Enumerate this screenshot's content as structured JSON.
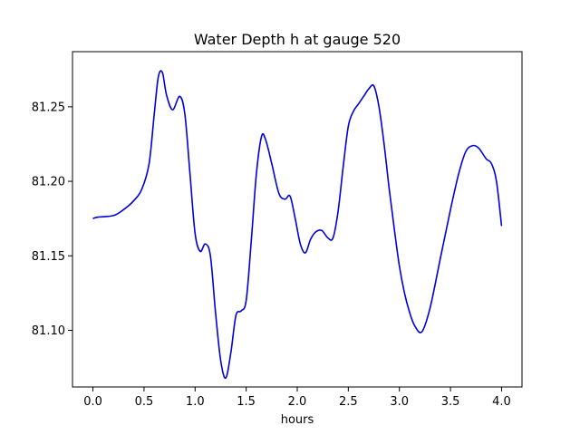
{
  "chart_data": {
    "type": "line",
    "title": "Water Depth h at gauge 520",
    "xlabel": "hours",
    "ylabel": "",
    "xlim": [
      -0.2,
      4.2
    ],
    "ylim": [
      81.062,
      81.287
    ],
    "x_ticks": [
      0.0,
      0.5,
      1.0,
      1.5,
      2.0,
      2.5,
      3.0,
      3.5,
      4.0
    ],
    "x_tick_labels": [
      "0.0",
      "0.5",
      "1.0",
      "1.5",
      "2.0",
      "2.5",
      "3.0",
      "3.5",
      "4.0"
    ],
    "y_ticks": [
      81.1,
      81.15,
      81.2,
      81.25
    ],
    "y_tick_labels": [
      "81.10",
      "81.15",
      "81.20",
      "81.25"
    ],
    "grid": false,
    "legend": "none",
    "line_color": "#0000dd",
    "series": [
      {
        "x": [
          0.0,
          0.05,
          0.2,
          0.3,
          0.4,
          0.48,
          0.55,
          0.6,
          0.64,
          0.68,
          0.72,
          0.78,
          0.85,
          0.9,
          0.95,
          1.0,
          1.05,
          1.1,
          1.15,
          1.2,
          1.25,
          1.3,
          1.35,
          1.4,
          1.45,
          1.5,
          1.55,
          1.6,
          1.65,
          1.69,
          1.75,
          1.82,
          1.88,
          1.93,
          1.98,
          2.03,
          2.08,
          2.13,
          2.18,
          2.24,
          2.3,
          2.35,
          2.4,
          2.45,
          2.5,
          2.55,
          2.6,
          2.65,
          2.7,
          2.75,
          2.8,
          2.85,
          2.9,
          2.95,
          3.0,
          3.05,
          3.1,
          3.15,
          3.22,
          3.3,
          3.4,
          3.5,
          3.58,
          3.65,
          3.72,
          3.78,
          3.85,
          3.9,
          3.95,
          4.0
        ],
        "y": [
          81.175,
          81.176,
          81.177,
          81.181,
          81.187,
          81.195,
          81.212,
          81.245,
          81.27,
          81.273,
          81.258,
          81.248,
          81.257,
          81.245,
          81.205,
          81.165,
          81.153,
          81.158,
          81.15,
          81.112,
          81.08,
          81.068,
          81.085,
          81.11,
          81.113,
          81.12,
          81.16,
          81.205,
          81.23,
          81.228,
          81.212,
          81.192,
          81.188,
          81.19,
          81.175,
          81.158,
          81.152,
          81.161,
          81.166,
          81.167,
          81.162,
          81.162,
          81.18,
          81.21,
          81.237,
          81.247,
          81.252,
          81.257,
          81.262,
          81.264,
          81.25,
          81.225,
          81.195,
          81.168,
          81.143,
          81.125,
          81.112,
          81.103,
          81.099,
          81.115,
          81.148,
          81.181,
          81.205,
          81.22,
          81.224,
          81.222,
          81.215,
          81.212,
          81.2,
          81.17
        ]
      }
    ]
  }
}
